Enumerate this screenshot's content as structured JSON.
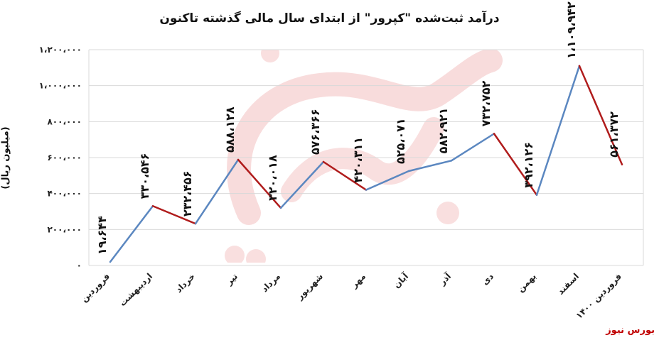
{
  "title": "درآمد ثبت‌شده \"کپرور\" از ابتدای سال مالی گذشته تاکنون",
  "source": "بورس نیوز",
  "colors": {
    "rise": "#5b87c0",
    "fall": "#b01c1c",
    "grid": "#d9d9d9",
    "watermark": "#e06060"
  },
  "chart_data": {
    "type": "line",
    "title": "درآمد ثبت‌شده \"کپرور\" از ابتدای سال مالی گذشته تاکنون",
    "xlabel": "",
    "ylabel": "(میلیون ریال)",
    "ylim": [
      0,
      1200000
    ],
    "y_ticks": [
      0,
      200000,
      400000,
      600000,
      800000,
      1000000,
      1200000
    ],
    "y_tick_labels": [
      "۰",
      "۲۰۰،۰۰۰",
      "۴۰۰،۰۰۰",
      "۶۰۰،۰۰۰",
      "۸۰۰،۰۰۰",
      "۱،۰۰۰،۰۰۰",
      "۱،۲۰۰،۰۰۰"
    ],
    "grid": true,
    "categories": [
      "فروردین",
      "اردیبهشت",
      "خرداد",
      "تیر",
      "مرداد",
      "شهریور",
      "مهر",
      "آبان",
      "آذر",
      "دی",
      "بهمن",
      "اسفند",
      "فروردین ۱۴۰۰"
    ],
    "values": [
      19644,
      330546,
      232456,
      588128,
      320018,
      576366,
      420311,
      525071,
      582921,
      732752,
      392126,
      1109942,
      561372
    ],
    "data_labels": [
      "۱۹،۶۴۴",
      "۳۳۰،۵۴۶",
      "۲۳۲،۴۵۶",
      "۵۸۸،۱۲۸",
      "۳۲۰،۰۱۸",
      "۵۷۶،۳۶۶",
      "۴۲۰،۳۱۱",
      "۵۲۵،۰۷۱",
      "۵۸۲،۹۲۱",
      "۷۳۲،۷۵۲",
      "۳۹۲،۱۲۶",
      "۱،۱۰۹،۹۴۲",
      "۵۶۱،۳۷۲"
    ]
  }
}
